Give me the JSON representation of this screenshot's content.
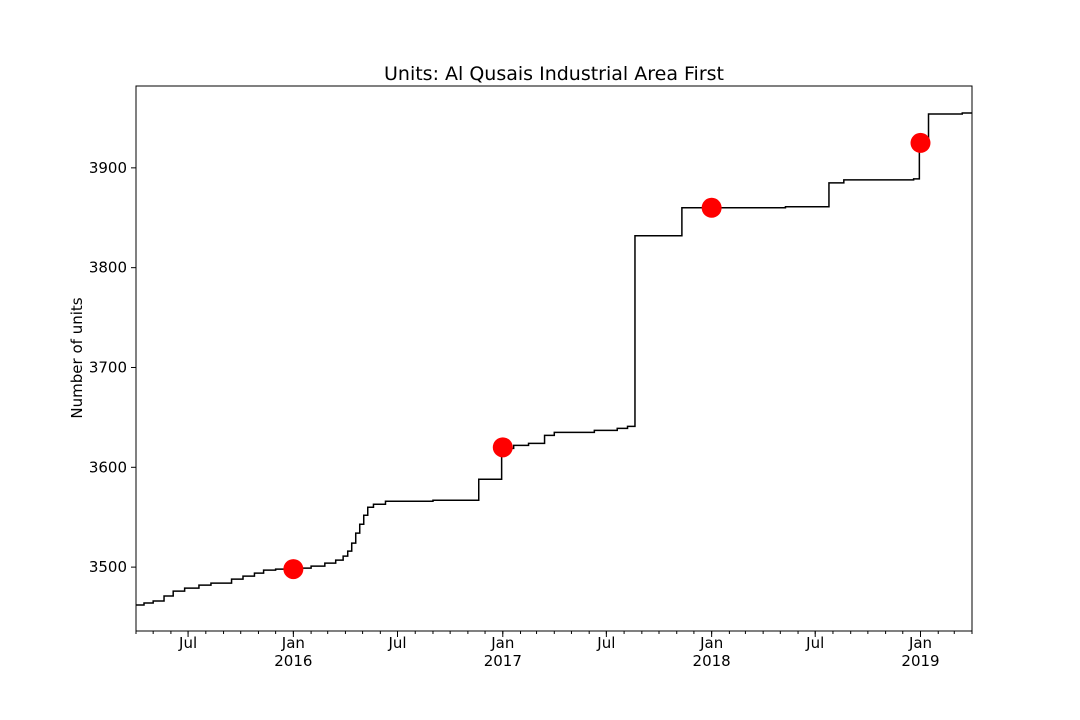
{
  "chart_data": {
    "type": "line",
    "title": "Units: Al Qusais Industrial Area First",
    "xlabel": "",
    "ylabel": "Number of units",
    "xlim": [
      "2015-04-01",
      "2019-04-01"
    ],
    "ylim": [
      3436,
      3982
    ],
    "grid": false,
    "legend": "none",
    "y_ticks": [
      3500,
      3600,
      3700,
      3800,
      3900
    ],
    "x_ticks": [
      {
        "date": "2015-07-01",
        "label": "Jul",
        "year": ""
      },
      {
        "date": "2016-01-01",
        "label": "Jan",
        "year": "2016"
      },
      {
        "date": "2016-07-01",
        "label": "Jul",
        "year": ""
      },
      {
        "date": "2017-01-01",
        "label": "Jan",
        "year": "2017"
      },
      {
        "date": "2017-07-01",
        "label": "Jul",
        "year": ""
      },
      {
        "date": "2018-01-01",
        "label": "Jan",
        "year": "2018"
      },
      {
        "date": "2018-07-01",
        "label": "Jul",
        "year": ""
      },
      {
        "date": "2019-01-01",
        "label": "Jan",
        "year": "2019"
      }
    ],
    "series": [
      {
        "style": "step",
        "color": "#000000",
        "points": [
          [
            "2015-04-01",
            3462
          ],
          [
            "2015-04-15",
            3464
          ],
          [
            "2015-05-01",
            3466
          ],
          [
            "2015-05-20",
            3471
          ],
          [
            "2015-06-05",
            3476
          ],
          [
            "2015-06-25",
            3479
          ],
          [
            "2015-07-20",
            3482
          ],
          [
            "2015-08-10",
            3484
          ],
          [
            "2015-09-15",
            3488
          ],
          [
            "2015-10-05",
            3491
          ],
          [
            "2015-10-25",
            3494
          ],
          [
            "2015-11-10",
            3497
          ],
          [
            "2015-12-01",
            3498
          ],
          [
            "2016-01-01",
            3499
          ],
          [
            "2016-02-01",
            3501
          ],
          [
            "2016-02-25",
            3504
          ],
          [
            "2016-03-15",
            3507
          ],
          [
            "2016-03-28",
            3511
          ],
          [
            "2016-04-05",
            3516
          ],
          [
            "2016-04-12",
            3524
          ],
          [
            "2016-04-19",
            3534
          ],
          [
            "2016-04-26",
            3543
          ],
          [
            "2016-05-03",
            3552
          ],
          [
            "2016-05-10",
            3560
          ],
          [
            "2016-05-20",
            3563
          ],
          [
            "2016-06-10",
            3566
          ],
          [
            "2016-09-01",
            3567
          ],
          [
            "2016-11-20",
            3588
          ],
          [
            "2016-12-30",
            3619
          ],
          [
            "2017-01-20",
            3622
          ],
          [
            "2017-02-15",
            3624
          ],
          [
            "2017-03-15",
            3632
          ],
          [
            "2017-04-01",
            3635
          ],
          [
            "2017-06-10",
            3637
          ],
          [
            "2017-07-20",
            3639
          ],
          [
            "2017-08-07",
            3641
          ],
          [
            "2017-08-20",
            3832
          ],
          [
            "2017-11-10",
            3860
          ],
          [
            "2018-05-10",
            3861
          ],
          [
            "2018-07-25",
            3885
          ],
          [
            "2018-08-20",
            3888
          ],
          [
            "2018-12-20",
            3889
          ],
          [
            "2018-12-30",
            3922
          ],
          [
            "2019-01-15",
            3954
          ],
          [
            "2019-03-15",
            3955
          ],
          [
            "2019-04-01",
            3955
          ]
        ]
      },
      {
        "style": "markers",
        "color": "#ff0000",
        "points": [
          [
            "2016-01-01",
            3498
          ],
          [
            "2017-01-01",
            3620
          ],
          [
            "2018-01-01",
            3860
          ],
          [
            "2019-01-01",
            3925
          ]
        ]
      }
    ]
  }
}
